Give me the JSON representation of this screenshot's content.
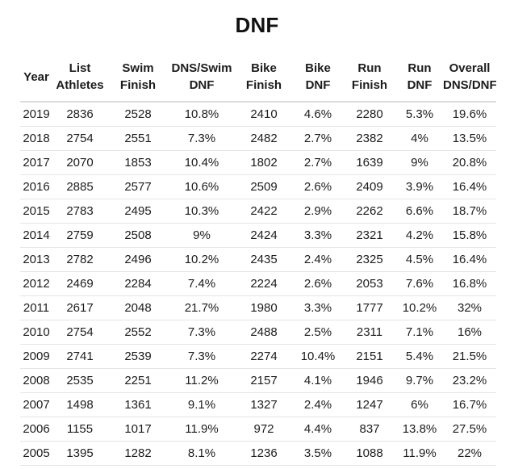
{
  "title": "DNF",
  "colors": {
    "background": "#ffffff",
    "text": "#1c1c1c",
    "title_text": "#111111",
    "header_divider": "#d9dbdf",
    "row_divider": "#e3e5e8"
  },
  "chart_data": {
    "type": "table",
    "title": "DNF",
    "columns": [
      {
        "lines": [
          "Year"
        ]
      },
      {
        "lines": [
          "List",
          "Athletes"
        ]
      },
      {
        "lines": [
          "Swim",
          "Finish"
        ]
      },
      {
        "lines": [
          "DNS/Swim",
          "DNF"
        ]
      },
      {
        "lines": [
          "Bike",
          "Finish"
        ]
      },
      {
        "lines": [
          "Bike",
          "DNF"
        ]
      },
      {
        "lines": [
          "Run",
          "Finish"
        ]
      },
      {
        "lines": [
          "Run",
          "DNF"
        ]
      },
      {
        "lines": [
          "Overall",
          "DNS/DNF"
        ]
      }
    ],
    "rows": [
      [
        "2019",
        "2836",
        "2528",
        "10.8%",
        "2410",
        "4.6%",
        "2280",
        "5.3%",
        "19.6%"
      ],
      [
        "2018",
        "2754",
        "2551",
        "7.3%",
        "2482",
        "2.7%",
        "2382",
        "4%",
        "13.5%"
      ],
      [
        "2017",
        "2070",
        "1853",
        "10.4%",
        "1802",
        "2.7%",
        "1639",
        "9%",
        "20.8%"
      ],
      [
        "2016",
        "2885",
        "2577",
        "10.6%",
        "2509",
        "2.6%",
        "2409",
        "3.9%",
        "16.4%"
      ],
      [
        "2015",
        "2783",
        "2495",
        "10.3%",
        "2422",
        "2.9%",
        "2262",
        "6.6%",
        "18.7%"
      ],
      [
        "2014",
        "2759",
        "2508",
        "9%",
        "2424",
        "3.3%",
        "2321",
        "4.2%",
        "15.8%"
      ],
      [
        "2013",
        "2782",
        "2496",
        "10.2%",
        "2435",
        "2.4%",
        "2325",
        "4.5%",
        "16.4%"
      ],
      [
        "2012",
        "2469",
        "2284",
        "7.4%",
        "2224",
        "2.6%",
        "2053",
        "7.6%",
        "16.8%"
      ],
      [
        "2011",
        "2617",
        "2048",
        "21.7%",
        "1980",
        "3.3%",
        "1777",
        "10.2%",
        "32%"
      ],
      [
        "2010",
        "2754",
        "2552",
        "7.3%",
        "2488",
        "2.5%",
        "2311",
        "7.1%",
        "16%"
      ],
      [
        "2009",
        "2741",
        "2539",
        "7.3%",
        "2274",
        "10.4%",
        "2151",
        "5.4%",
        "21.5%"
      ],
      [
        "2008",
        "2535",
        "2251",
        "11.2%",
        "2157",
        "4.1%",
        "1946",
        "9.7%",
        "23.2%"
      ],
      [
        "2007",
        "1498",
        "1361",
        "9.1%",
        "1327",
        "2.4%",
        "1247",
        "6%",
        "16.7%"
      ],
      [
        "2006",
        "1155",
        "1017",
        "11.9%",
        "972",
        "4.4%",
        "837",
        "13.8%",
        "27.5%"
      ],
      [
        "2005",
        "1395",
        "1282",
        "8.1%",
        "1236",
        "3.5%",
        "1088",
        "11.9%",
        "22%"
      ]
    ]
  }
}
